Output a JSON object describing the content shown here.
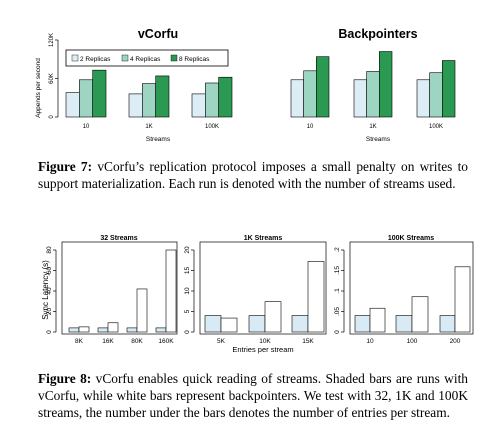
{
  "chart_data": [
    {
      "type": "bar",
      "title": "vCorfu",
      "ylabel": "Appends per second",
      "xlabel": "Streams",
      "categories": [
        "10",
        "1K",
        "100K"
      ],
      "yticks": [
        "0",
        "60K",
        "120K"
      ],
      "ylim": [
        0,
        120000
      ],
      "legend": [
        "2 Replicas",
        "4 Replicas",
        "8 Replicas"
      ],
      "legend_placement": "top",
      "series": [
        {
          "name": "2 Replicas",
          "values": [
            38000,
            36000,
            36000
          ]
        },
        {
          "name": "4 Replicas",
          "values": [
            58000,
            52000,
            53000
          ]
        },
        {
          "name": "8 Replicas",
          "values": [
            73000,
            64000,
            62000
          ]
        }
      ]
    },
    {
      "type": "bar",
      "title": "Backpointers",
      "xlabel": "Streams",
      "categories": [
        "10",
        "1K",
        "100K"
      ],
      "ylim": [
        0,
        120000
      ],
      "series": [
        {
          "name": "2 Replicas",
          "values": [
            58000,
            58000,
            58000
          ]
        },
        {
          "name": "4 Replicas",
          "values": [
            72000,
            71000,
            69000
          ]
        },
        {
          "name": "8 Replicas",
          "values": [
            94000,
            102000,
            88000
          ]
        }
      ]
    },
    {
      "type": "bar",
      "title": "32 Streams",
      "ylabel": "Sync Latency (s)",
      "categories": [
        "8K",
        "16K",
        "80K",
        "160K"
      ],
      "yticks": [
        "0",
        "20",
        "40",
        "60",
        "80"
      ],
      "ylim": [
        0,
        80
      ],
      "series": [
        {
          "values": [
            4,
            4,
            4,
            4
          ]
        },
        {
          "values": [
            5,
            9,
            42,
            80
          ]
        }
      ]
    },
    {
      "type": "bar",
      "title": "1K Streams",
      "xlabel": "Entries per stream",
      "categories": [
        "5K",
        "10K",
        "15K"
      ],
      "yticks": [
        "0",
        "5",
        "10",
        "15",
        "20"
      ],
      "ylim": [
        0,
        20
      ],
      "series": [
        {
          "values": [
            4,
            4,
            4
          ]
        },
        {
          "values": [
            3.4,
            7.4,
            17.2
          ]
        }
      ]
    },
    {
      "type": "bar",
      "title": "100K Streams",
      "categories": [
        "10",
        "100",
        "200"
      ],
      "yticks": [
        "0",
        ".05",
        ".1",
        ".15",
        ".2"
      ],
      "ylim": [
        0,
        0.2
      ],
      "series": [
        {
          "values": [
            0.04,
            0.04,
            0.04
          ]
        },
        {
          "values": [
            0.058,
            0.086,
            0.159
          ]
        }
      ]
    }
  ],
  "colors": {
    "replica2": "#dcedf5",
    "replica4": "#9dd5c2",
    "replica8": "#2a9a52",
    "vcorfu_shade": "#d8ebf4",
    "backpointer": "#ffffff"
  },
  "captions": {
    "fig7_label": "Figure 7:",
    "fig7_text": " vCorfu’s replication protocol imposes a small penalty on writes to support materialization. Each run is denoted with the number of streams used.",
    "fig8_label": "Figure 8:",
    "fig8_text": " vCorfu enables quick reading of streams. Shaded bars are runs with vCorfu, while white bars represent backpointers. We test with 32, 1K and 100K streams, the number under the bars denotes the number of entries per stream."
  }
}
